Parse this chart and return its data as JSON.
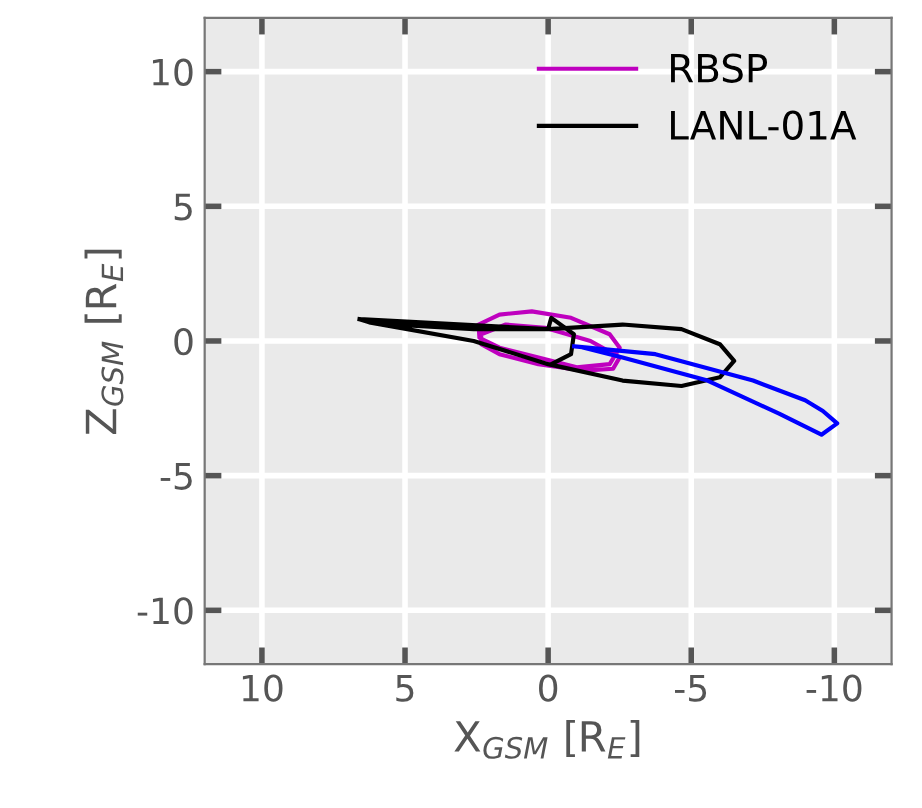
{
  "chart_data": {
    "type": "line",
    "xlabel": "X$_{GSM}$ [R$_{E}$]",
    "ylabel": "Z$_{GSM}$ [R$_{E}$]",
    "xlim": [
      12,
      -12
    ],
    "ylim": [
      -12,
      12
    ],
    "xticks": [
      10,
      5,
      0,
      -5,
      -10
    ],
    "yticks": [
      -10,
      -5,
      0,
      5,
      10
    ],
    "grid": true,
    "legend": "top right",
    "line_style": "solid",
    "marker": "none",
    "series": [
      {
        "name": "RBSP",
        "color": "#bf00bf",
        "x": [
          2.43,
          1.7,
          0.57,
          -0.8,
          -2.15,
          -2.5,
          -2.15,
          -1.0,
          0.34,
          1.7,
          2.4,
          2.43,
          2.34,
          1.48,
          0.11,
          -1.48,
          -2.5,
          -2.27,
          -1.25,
          0.34,
          1.7,
          2.34,
          2.34
        ],
        "values": [
          0.61,
          0.98,
          1.1,
          0.86,
          0.25,
          -0.25,
          -0.86,
          -0.98,
          -0.61,
          -0.25,
          0.12,
          0.61,
          0.25,
          0.61,
          0.49,
          0.0,
          -0.61,
          -1.03,
          -1.1,
          -0.86,
          -0.49,
          -0.12,
          0.25
        ]
      },
      {
        "name": "LANL-01A",
        "color": "#000000",
        "x": [
          6.59,
          5.34,
          2.6,
          0.0,
          -2.6,
          -4.66,
          -6.0,
          -6.5,
          -6.0,
          -4.66,
          -2.6,
          0.0,
          2.6,
          6.25,
          6.59,
          0.0,
          -0.11,
          -0.9,
          -0.8,
          -0.11
        ],
        "values": [
          0.81,
          0.61,
          0.44,
          0.44,
          0.61,
          0.44,
          -0.12,
          -0.74,
          -1.35,
          -1.67,
          -1.47,
          -0.86,
          0.0,
          0.69,
          0.81,
          0.44,
          0.86,
          0.25,
          -0.49,
          -0.86
        ]
      },
      {
        "color": "#0000ff",
        "x": [
          -0.91,
          -3.75,
          -7.16,
          -8.98,
          -9.6,
          -10.1,
          -9.55,
          -8.07,
          -5.57,
          -2.6,
          -1.25
        ],
        "values": [
          -0.2,
          -0.49,
          -1.47,
          -2.2,
          -2.6,
          -3.06,
          -3.48,
          -2.7,
          -1.47,
          -0.61,
          -0.25
        ]
      }
    ]
  }
}
